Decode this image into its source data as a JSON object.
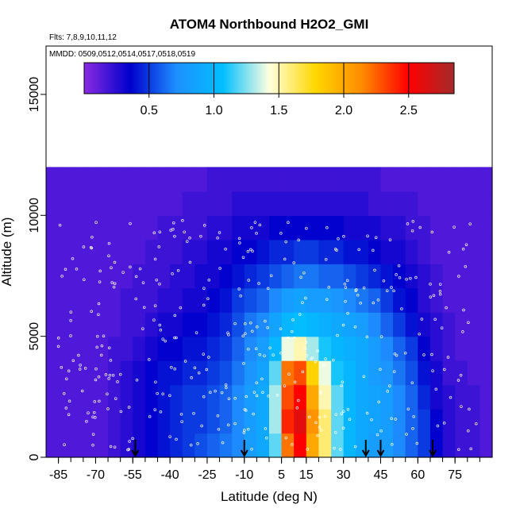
{
  "chart_data": {
    "type": "heatmap",
    "title": "ATOM4 Northbound H2O2_GMI",
    "subtitle_flights": "Flts: 7,8,9,10,11,12",
    "subtitle_dates": "MMDD: 0509,0512,0514,0517,0518,0519",
    "xlabel": "Latitude (deg N)",
    "ylabel": "Altitude (m)",
    "xlim": [
      -90,
      90
    ],
    "ylim": [
      0,
      17000
    ],
    "x_ticks": [
      -85,
      -70,
      -55,
      -40,
      -25,
      -10,
      5,
      15,
      30,
      45,
      60,
      75
    ],
    "y_ticks": [
      0,
      5000,
      10000,
      15000
    ],
    "colorbar": {
      "range": [
        0,
        2.85
      ],
      "ticks": [
        0.5,
        1.0,
        1.5,
        2.0,
        2.5
      ],
      "tick_labels": [
        "0.5",
        "1.0",
        "1.5",
        "2.0",
        "2.5"
      ],
      "colors": [
        "#8a2be2",
        "#0000cd",
        "#1e90ff",
        "#00bfff",
        "#ffffe0",
        "#ffd700",
        "#ff8c00",
        "#ff0000",
        "#a52a2a"
      ]
    },
    "grid": false,
    "approx_field": {
      "lat_bins": [
        -87.5,
        -82.5,
        -77.5,
        -72.5,
        -67.5,
        -62.5,
        -57.5,
        -52.5,
        -47.5,
        -42.5,
        -37.5,
        -32.5,
        -27.5,
        -22.5,
        -17.5,
        -12.5,
        -7.5,
        -2.5,
        2.5,
        7.5,
        12.5,
        17.5,
        22.5,
        27.5,
        32.5,
        37.5,
        42.5,
        47.5,
        52.5,
        57.5,
        62.5,
        67.5,
        72.5,
        77.5,
        82.5,
        87.5
      ],
      "alt_bins": [
        500,
        1500,
        2500,
        3500,
        4500,
        5500,
        6500,
        7500,
        8500,
        9500,
        10500,
        11500
      ],
      "values": [
        [
          0.15,
          0.15,
          0.15,
          0.15,
          0.15,
          0.2,
          0.25,
          0.3,
          0.35,
          0.4,
          0.45,
          0.5,
          0.55,
          0.6,
          0.65,
          0.7,
          0.8,
          0.9,
          1.2,
          2.2,
          2.5,
          2.0,
          1.6,
          1.2,
          1.0,
          0.9,
          0.8,
          0.8,
          0.7,
          0.6,
          0.5,
          0.35,
          0.25,
          0.2,
          0.2,
          0.15
        ],
        [
          0.15,
          0.15,
          0.15,
          0.15,
          0.15,
          0.2,
          0.25,
          0.3,
          0.35,
          0.4,
          0.45,
          0.5,
          0.5,
          0.55,
          0.6,
          0.7,
          0.8,
          0.9,
          1.3,
          2.4,
          2.6,
          2.1,
          1.6,
          1.2,
          1.0,
          0.9,
          0.85,
          0.8,
          0.7,
          0.6,
          0.5,
          0.35,
          0.25,
          0.2,
          0.2,
          0.15
        ],
        [
          0.15,
          0.15,
          0.15,
          0.15,
          0.15,
          0.2,
          0.25,
          0.3,
          0.35,
          0.4,
          0.45,
          0.5,
          0.5,
          0.55,
          0.6,
          0.7,
          0.8,
          0.9,
          1.3,
          2.3,
          2.5,
          2.0,
          1.5,
          1.2,
          1.0,
          0.9,
          0.85,
          0.8,
          0.7,
          0.6,
          0.45,
          0.3,
          0.25,
          0.2,
          0.2,
          0.15
        ],
        [
          0.15,
          0.15,
          0.15,
          0.15,
          0.15,
          0.2,
          0.25,
          0.3,
          0.35,
          0.4,
          0.4,
          0.45,
          0.45,
          0.5,
          0.55,
          0.65,
          0.75,
          0.85,
          1.2,
          2.2,
          2.3,
          1.8,
          1.4,
          1.1,
          1.0,
          0.9,
          0.8,
          0.75,
          0.65,
          0.55,
          0.4,
          0.3,
          0.2,
          0.2,
          0.15,
          0.15
        ],
        [
          0.15,
          0.15,
          0.15,
          0.15,
          0.15,
          0.2,
          0.2,
          0.25,
          0.3,
          0.35,
          0.35,
          0.4,
          0.4,
          0.45,
          0.5,
          0.6,
          0.7,
          0.8,
          1.0,
          1.4,
          1.5,
          1.3,
          1.1,
          1.0,
          0.95,
          0.9,
          0.8,
          0.7,
          0.6,
          0.5,
          0.35,
          0.25,
          0.2,
          0.15,
          0.15,
          0.15
        ],
        [
          0.15,
          0.15,
          0.15,
          0.15,
          0.15,
          0.15,
          0.2,
          0.2,
          0.25,
          0.3,
          0.3,
          0.35,
          0.35,
          0.4,
          0.45,
          0.55,
          0.65,
          0.7,
          0.85,
          1.0,
          1.05,
          1.0,
          0.95,
          0.9,
          0.85,
          0.8,
          0.7,
          0.6,
          0.5,
          0.4,
          0.3,
          0.25,
          0.2,
          0.15,
          0.15,
          0.15
        ],
        [
          0.15,
          0.15,
          0.15,
          0.15,
          0.15,
          0.15,
          0.2,
          0.2,
          0.2,
          0.25,
          0.25,
          0.3,
          0.3,
          0.35,
          0.4,
          0.5,
          0.55,
          0.6,
          0.7,
          0.8,
          0.85,
          0.8,
          0.8,
          0.75,
          0.7,
          0.65,
          0.6,
          0.5,
          0.4,
          0.35,
          0.25,
          0.2,
          0.15,
          0.15,
          0.15,
          0.15
        ],
        [
          0.15,
          0.15,
          0.15,
          0.15,
          0.15,
          0.15,
          0.15,
          0.2,
          0.2,
          0.2,
          0.25,
          0.25,
          0.3,
          0.3,
          0.35,
          0.4,
          0.45,
          0.5,
          0.55,
          0.6,
          0.65,
          0.65,
          0.6,
          0.6,
          0.55,
          0.5,
          0.45,
          0.4,
          0.35,
          0.3,
          0.25,
          0.2,
          0.15,
          0.15,
          0.15,
          0.15
        ],
        [
          0.15,
          0.15,
          0.15,
          0.15,
          0.15,
          0.15,
          0.15,
          0.15,
          0.2,
          0.2,
          0.2,
          0.25,
          0.25,
          0.3,
          0.3,
          0.35,
          0.35,
          0.4,
          0.45,
          0.45,
          0.5,
          0.5,
          0.45,
          0.45,
          0.4,
          0.4,
          0.35,
          0.3,
          0.3,
          0.25,
          0.2,
          0.15,
          0.15,
          0.15,
          0.15,
          0.15
        ],
        [
          0.15,
          0.15,
          0.15,
          0.15,
          0.15,
          0.15,
          0.15,
          0.15,
          0.15,
          0.2,
          0.2,
          0.2,
          0.2,
          0.25,
          0.25,
          0.3,
          0.3,
          0.3,
          0.35,
          0.35,
          0.35,
          0.35,
          0.35,
          0.35,
          0.3,
          0.3,
          0.3,
          0.25,
          0.25,
          0.2,
          0.2,
          0.15,
          0.15,
          0.15,
          0.15,
          0.15
        ],
        [
          0.15,
          0.15,
          0.15,
          0.15,
          0.15,
          0.15,
          0.15,
          0.15,
          0.15,
          0.15,
          0.15,
          0.2,
          0.2,
          0.2,
          0.2,
          0.25,
          0.25,
          0.25,
          0.25,
          0.25,
          0.25,
          0.25,
          0.25,
          0.25,
          0.25,
          0.25,
          0.2,
          0.2,
          0.2,
          0.2,
          0.15,
          0.15,
          0.15,
          0.15,
          0.15,
          0.15
        ],
        [
          0.15,
          0.15,
          0.15,
          0.15,
          0.15,
          0.15,
          0.15,
          0.15,
          0.15,
          0.15,
          0.15,
          0.15,
          0.15,
          0.2,
          0.2,
          0.2,
          0.2,
          0.2,
          0.2,
          0.2,
          0.2,
          0.2,
          0.2,
          0.2,
          0.2,
          0.2,
          0.2,
          0.15,
          0.15,
          0.15,
          0.15,
          0.15,
          0.15,
          0.15,
          0.15,
          0.15
        ]
      ]
    },
    "arrow_latitudes": [
      -54,
      -10,
      39,
      45,
      66
    ]
  }
}
